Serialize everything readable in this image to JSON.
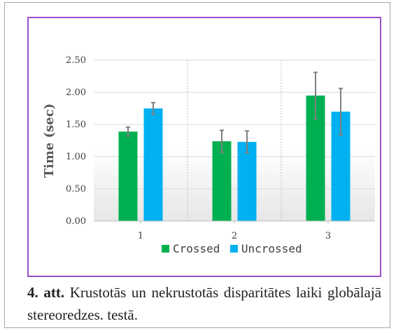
{
  "chart_data": {
    "type": "bar",
    "categories": [
      "1",
      "2",
      "3"
    ],
    "series": [
      {
        "name": "Crossed",
        "color": "#00b050",
        "values": [
          1.39,
          1.24,
          1.95
        ],
        "errors": [
          0.07,
          0.17,
          0.36
        ]
      },
      {
        "name": "Uncrossed",
        "color": "#00b0f0",
        "values": [
          1.75,
          1.23,
          1.7
        ],
        "errors": [
          0.09,
          0.17,
          0.36
        ]
      }
    ],
    "ylabel": "Time (sec)",
    "xlabel": "",
    "ylim": [
      0,
      2.5
    ],
    "yticks": [
      "0.00",
      "0.50",
      "1.00",
      "1.50",
      "2.00",
      "2.50"
    ],
    "grid": "horizontal",
    "legend_position": "bottom",
    "error_bar_color": "#7f7f7f"
  },
  "caption": {
    "label": "4. att.",
    "text": "Krustotās un nekrustotās disparitātes laiki globālajā stereoredzes. testā."
  }
}
